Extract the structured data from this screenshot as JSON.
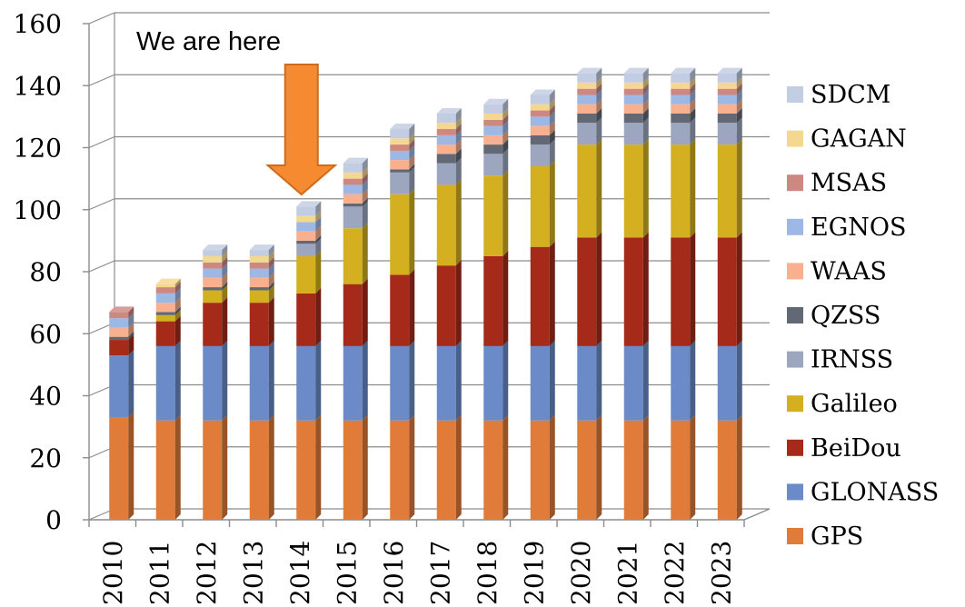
{
  "chart_data": {
    "type": "bar",
    "stacked": true,
    "categories": [
      "2010",
      "2011",
      "2012",
      "2013",
      "2014",
      "2015",
      "2016",
      "2017",
      "2018",
      "2019",
      "2020",
      "2021",
      "2022",
      "2023"
    ],
    "ylim": [
      0,
      160
    ],
    "yticks": [
      0,
      20,
      40,
      60,
      80,
      100,
      120,
      140,
      160
    ],
    "grid": true,
    "legend_position": "right",
    "series": [
      {
        "name": "GPS",
        "color": "#E07B39",
        "values": [
          33,
          32,
          32,
          32,
          32,
          32,
          32,
          32,
          32,
          32,
          32,
          32,
          32,
          32
        ]
      },
      {
        "name": "GLONASS",
        "color": "#6A8BC8",
        "values": [
          20,
          24,
          24,
          24,
          24,
          24,
          24,
          24,
          24,
          24,
          24,
          24,
          24,
          24
        ]
      },
      {
        "name": "BeiDou",
        "color": "#A52A1A",
        "values": [
          5,
          8,
          14,
          14,
          17,
          20,
          23,
          26,
          29,
          32,
          35,
          35,
          35,
          35
        ]
      },
      {
        "name": "Galileo",
        "color": "#D4B020",
        "values": [
          0,
          2,
          4,
          4,
          12,
          18,
          26,
          26,
          26,
          26,
          30,
          30,
          30,
          30
        ]
      },
      {
        "name": "IRNSS",
        "color": "#9CA6BE",
        "values": [
          0,
          0,
          0,
          0,
          4,
          7,
          7,
          7,
          7,
          7,
          7,
          7,
          7,
          7
        ]
      },
      {
        "name": "QZSS",
        "color": "#626874",
        "values": [
          1,
          1,
          1,
          1,
          1,
          1,
          1,
          3,
          3,
          3,
          3,
          3,
          3,
          3
        ]
      },
      {
        "name": "WAAS",
        "color": "#F8B08E",
        "values": [
          3,
          3,
          3,
          3,
          3,
          3,
          3,
          3,
          3,
          3,
          3,
          3,
          3,
          3
        ]
      },
      {
        "name": "EGNOS",
        "color": "#9EB8E6",
        "values": [
          3,
          3,
          3,
          3,
          3,
          3,
          3,
          3,
          3,
          3,
          3,
          3,
          3,
          3
        ]
      },
      {
        "name": "MSAS",
        "color": "#CE8882",
        "values": [
          2,
          2,
          2,
          2,
          0,
          2,
          2,
          2,
          2,
          2,
          2,
          2,
          2,
          2
        ]
      },
      {
        "name": "GAGAN",
        "color": "#F5D890",
        "values": [
          0,
          1,
          2,
          2,
          2,
          2,
          2,
          2,
          2,
          2,
          2,
          2,
          2,
          2
        ]
      },
      {
        "name": "SDCM",
        "color": "#C2CCE2",
        "values": [
          0,
          0,
          2,
          2,
          3,
          3,
          3,
          3,
          3,
          3,
          3,
          3,
          3,
          3
        ]
      }
    ],
    "annotation": {
      "text": "We are here",
      "category": "2014",
      "arrow_color": "#F58A30"
    }
  }
}
